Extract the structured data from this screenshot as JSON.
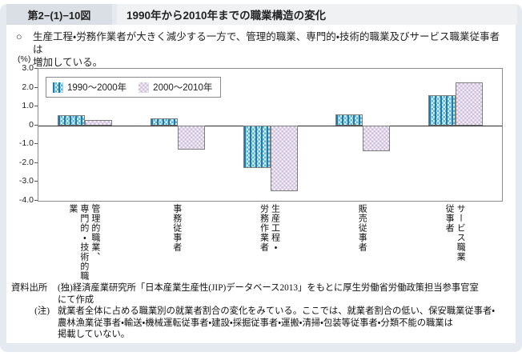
{
  "header": {
    "figure_number": "第2−(1)−10図",
    "title": "1990年から2010年までの職業構造の変化"
  },
  "lead": {
    "bullet": "○",
    "text": "生産工程・労務作業者が大きく減少する一方で、管理的職業、専門的・技術的職業及びサービス職業従事者は\n増加している。"
  },
  "chart_data": {
    "type": "bar",
    "title": "",
    "unit_label": "(%)",
    "xlabel": "",
    "ylabel": "(%)",
    "ylim": [
      -4.0,
      3.0
    ],
    "ytick_step": 1.0,
    "ytick_labels": [
      "3.0",
      "2.0",
      "1.0",
      "0",
      "-1.0",
      "-2.0",
      "-3.0",
      "-4.0"
    ],
    "grid": false,
    "legend_position": "top-left",
    "categories": [
      "管理的職業、専門的・技術的職業",
      "事務従事者",
      "生産工程・労務作業者",
      "販売従事者",
      "サービス職業従事者"
    ],
    "category_labels_display": [
      "管理的職業、\n専門的・技術的職業",
      "事務従事者",
      "生産工程・\n労務作業者",
      "販売従事者",
      "サービス職業\n従事者"
    ],
    "series": [
      {
        "name": "1990〜2000年",
        "values": [
          0.55,
          0.35,
          -2.25,
          0.6,
          1.6
        ]
      },
      {
        "name": "2000〜2010年",
        "values": [
          0.3,
          -1.3,
          -3.5,
          -1.35,
          2.3
        ]
      }
    ],
    "colors": {
      "series1_base": "#5ab5d6",
      "series1_stripe": "#1876a6",
      "series2_base": "#cdc0db",
      "axis_border": "#8a8a8a",
      "zero_line": "#2a2a2a"
    }
  },
  "footer": {
    "source_label": "資料出所",
    "source_text": "(独)経済産業研究所「日本産業生産性(JIP)データベース2013」をもとに厚生労働省労働政策担当参事官室\nにて作成",
    "note_label": "(注)",
    "note_text": "就業者全体に占める職業別の就業者割合の変化をみている。ここでは、就業者割合の低い、保安職業従事者・\n農林漁業従事者・輸送・機械運転従事者・建設・採掘従事者・運搬・清掃・包装等従事者・分類不能の職業は\n掲載していない。"
  }
}
